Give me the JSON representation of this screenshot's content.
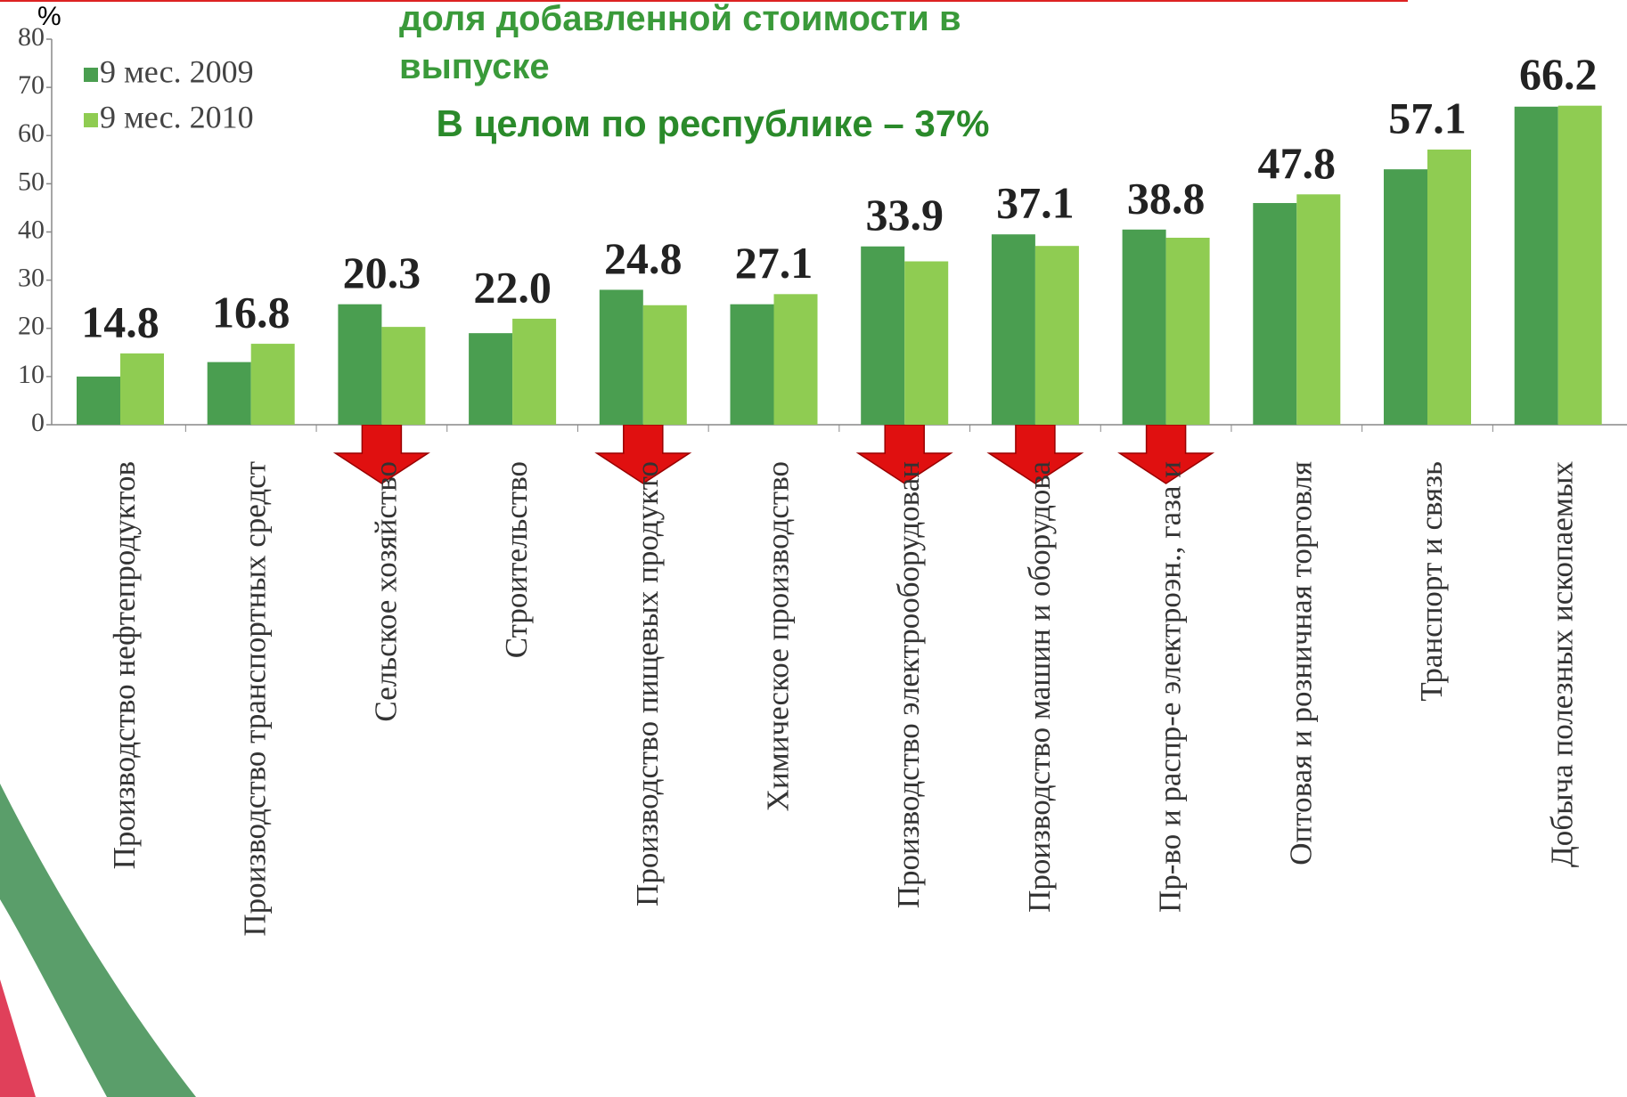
{
  "chart_data": {
    "type": "bar",
    "title": "доля добавленной стоимости в выпуске",
    "annotation": "В целом по республике – 37%",
    "y_label": "%",
    "categories": [
      "Производство нефтепродуктов",
      "Производство транспортных средст",
      "Сельское хозяйство",
      "Строительство",
      "Производство пищевых продукто",
      "Химическое производство",
      "Производство электрооборудован",
      "Производство машин и оборудова",
      "Пр-во и распр-е электроэн., газа и",
      "Оптовая и розничная торговля",
      "Транспорт и связь",
      "Добыча полезных ископаемых"
    ],
    "series": [
      {
        "name": "9 мес. 2009",
        "color": "#4a9e50",
        "values": [
          10,
          13,
          25,
          19,
          28,
          25,
          37,
          39.5,
          40.5,
          46,
          53,
          66
        ]
      },
      {
        "name": "9 мес. 2010",
        "color": "#8fcc52",
        "values": [
          14.8,
          16.8,
          20.3,
          22,
          24.8,
          27.1,
          33.9,
          37.1,
          38.8,
          47.8,
          57.1,
          66.2
        ],
        "value_labels": [
          "14.8",
          "16.8",
          "20.3",
          "22.0",
          "24.8",
          "27.1",
          "33.9",
          "37.1",
          "38.8",
          "47.8",
          "57.1",
          "66.2"
        ]
      }
    ],
    "ylim": [
      0,
      80
    ],
    "yticks": [
      0,
      10,
      20,
      30,
      40,
      50,
      60,
      70,
      80
    ],
    "legend": "top-left"
  }
}
